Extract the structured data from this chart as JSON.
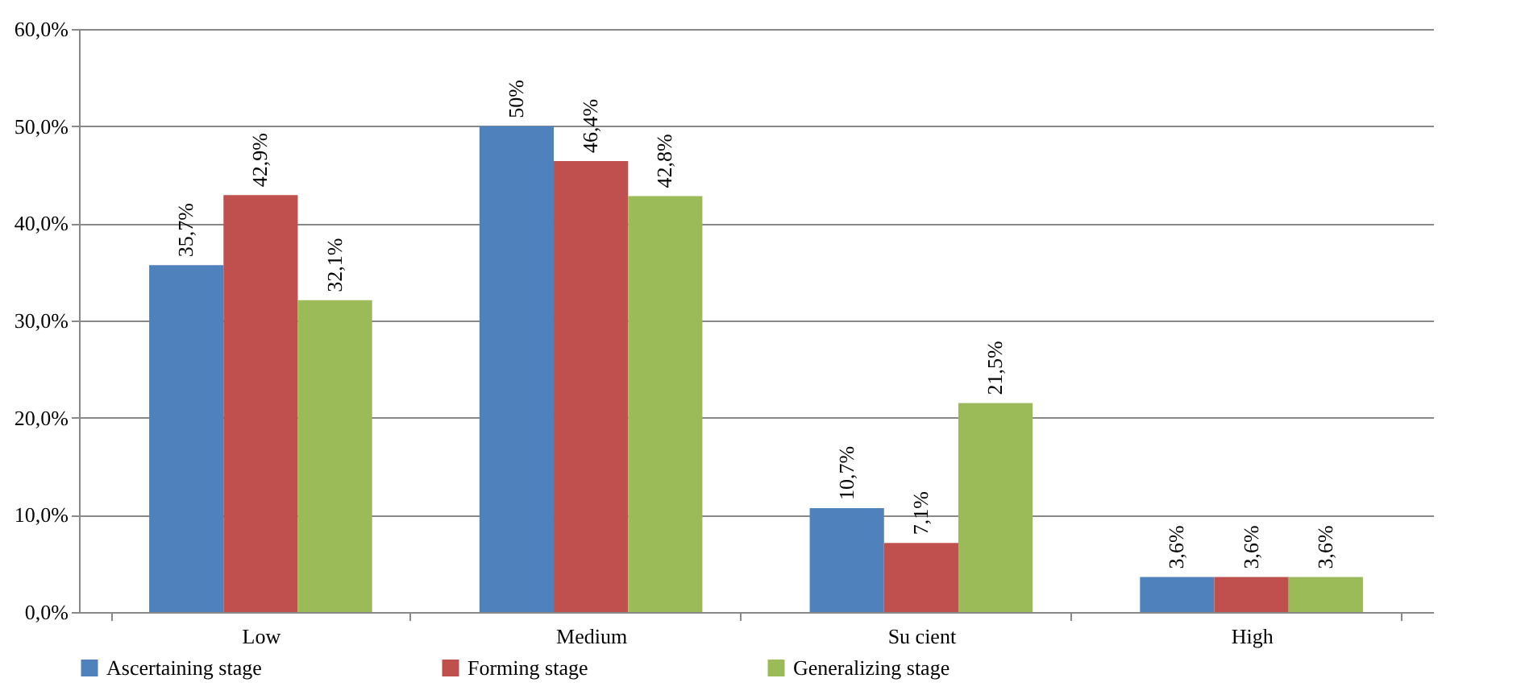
{
  "chart_data": {
    "type": "bar",
    "categories": [
      "Low",
      "Medium",
      "Su cient",
      "High"
    ],
    "series": [
      {
        "name": "Ascertaining stage",
        "color": "#4f81bd",
        "values": [
          35.7,
          50,
          10.7,
          3.6
        ],
        "value_labels": [
          "35,7%",
          "50%",
          "10,7%",
          "3,6%"
        ]
      },
      {
        "name": "Forming stage",
        "color": "#c0504d",
        "values": [
          42.9,
          46.4,
          7.1,
          3.6
        ],
        "value_labels": [
          "42,9%",
          "46,4%",
          "7,1%",
          "3,6%"
        ]
      },
      {
        "name": "Generalizing stage",
        "color": "#9bbb59",
        "values": [
          32.1,
          42.8,
          21.5,
          3.6
        ],
        "value_labels": [
          "32,1%",
          "42,8%",
          "21,5%",
          "3,6%"
        ]
      }
    ],
    "ylim": [
      0,
      60
    ],
    "yticks": [
      {
        "value": 0,
        "label": "0,0%"
      },
      {
        "value": 10,
        "label": "10,0%"
      },
      {
        "value": 20,
        "label": "20,0%"
      },
      {
        "value": 30,
        "label": "30,0%"
      },
      {
        "value": 40,
        "label": "40,0%"
      },
      {
        "value": 50,
        "label": "50,0%"
      },
      {
        "value": 60,
        "label": "60,0%"
      }
    ],
    "grid": "y",
    "legend": "bottom"
  }
}
